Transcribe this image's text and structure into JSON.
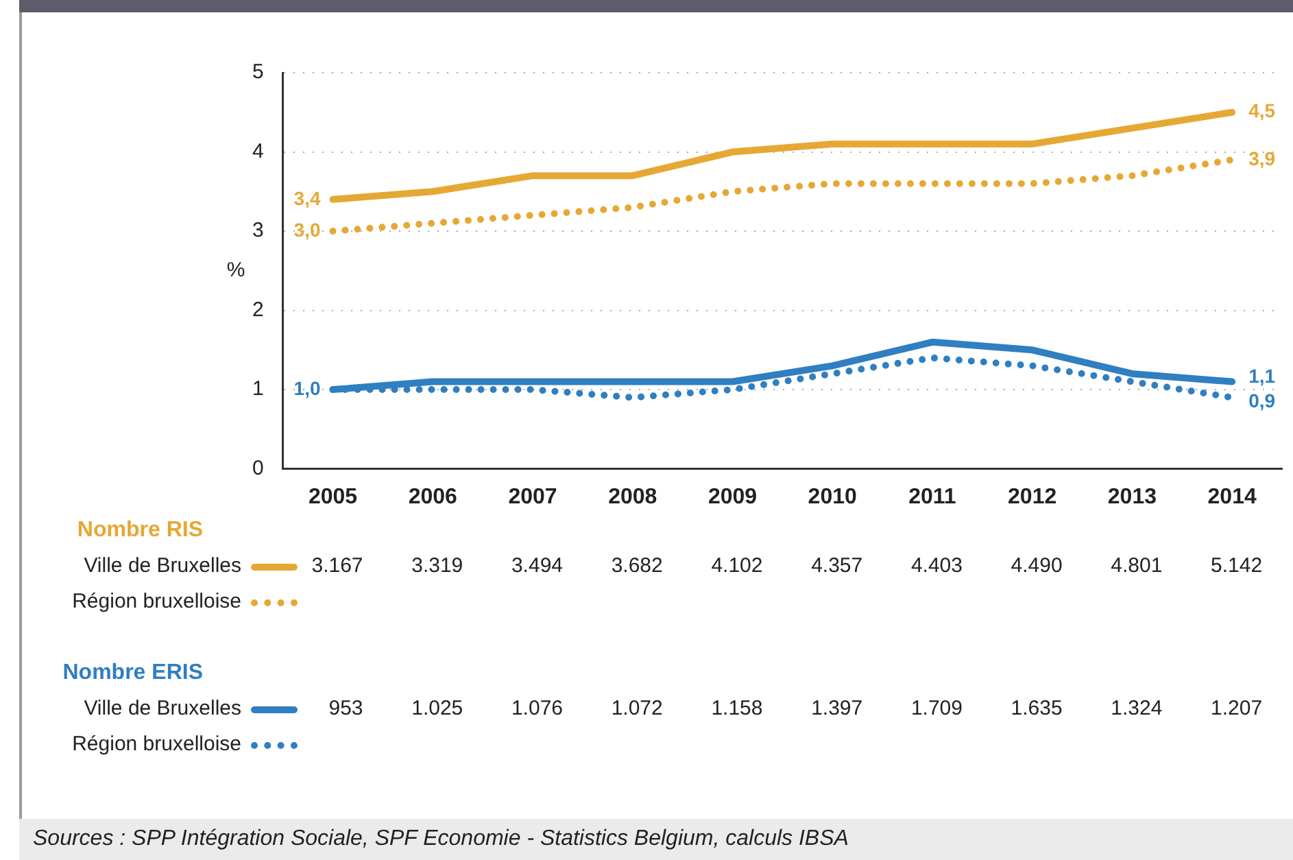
{
  "chart_data": {
    "type": "line",
    "ylabel": "%",
    "categories": [
      "2005",
      "2006",
      "2007",
      "2008",
      "2009",
      "2010",
      "2011",
      "2012",
      "2013",
      "2014"
    ],
    "series": [
      {
        "name": "Ville de Bruxelles",
        "color": "#e6a835",
        "line_style": "solid",
        "values": [
          3.4,
          3.5,
          3.7,
          3.7,
          4.0,
          4.1,
          4.1,
          4.1,
          4.3,
          4.5
        ],
        "value_labels": [
          "3,4",
          null,
          null,
          null,
          null,
          null,
          null,
          null,
          null,
          "4,5"
        ]
      },
      {
        "name": "Région bruxelloise",
        "color": "#e6a835",
        "line_style": "dotted",
        "values": [
          3.0,
          3.1,
          3.2,
          3.3,
          3.5,
          3.6,
          3.6,
          3.6,
          3.7,
          3.9
        ],
        "value_labels": [
          "3,0",
          null,
          null,
          null,
          null,
          null,
          null,
          null,
          null,
          "3,9"
        ]
      },
      {
        "name": "Ville de Bruxelles",
        "color": "#2f7fc1",
        "line_style": "solid",
        "values": [
          1.0,
          1.1,
          1.1,
          1.1,
          1.1,
          1.3,
          1.6,
          1.5,
          1.2,
          1.1
        ],
        "value_labels": [
          "1,0",
          null,
          null,
          null,
          null,
          null,
          null,
          null,
          null,
          "1,1"
        ]
      },
      {
        "name": "Région bruxelloise",
        "color": "#2f7fc1",
        "line_style": "dotted",
        "values": [
          1.0,
          1.0,
          1.0,
          0.9,
          1.0,
          1.2,
          1.4,
          1.3,
          1.1,
          0.9
        ],
        "value_labels": [
          null,
          null,
          null,
          null,
          null,
          null,
          null,
          null,
          null,
          "0,9"
        ]
      }
    ],
    "ylim": [
      0,
      5
    ],
    "yticks": [
      0,
      1,
      2,
      3,
      4,
      5
    ],
    "grid": "y",
    "marker": "none",
    "legend": "bottom",
    "annotations": [
      "Nombre RIS",
      "3.167",
      "3.319",
      "3.494",
      "3.682",
      "4.102",
      "4.357",
      "4.403",
      "4.490",
      "4.801",
      "5.142",
      "Nombre ERIS",
      "953",
      "1.025",
      "1.076",
      "1.072",
      "1.158",
      "1.397",
      "1.709",
      "1.635",
      "1.324",
      "1.207",
      "Sources : SPP Intégration Sociale, SPF Economie - Statistics Belgium, calculs IBSA"
    ]
  }
}
